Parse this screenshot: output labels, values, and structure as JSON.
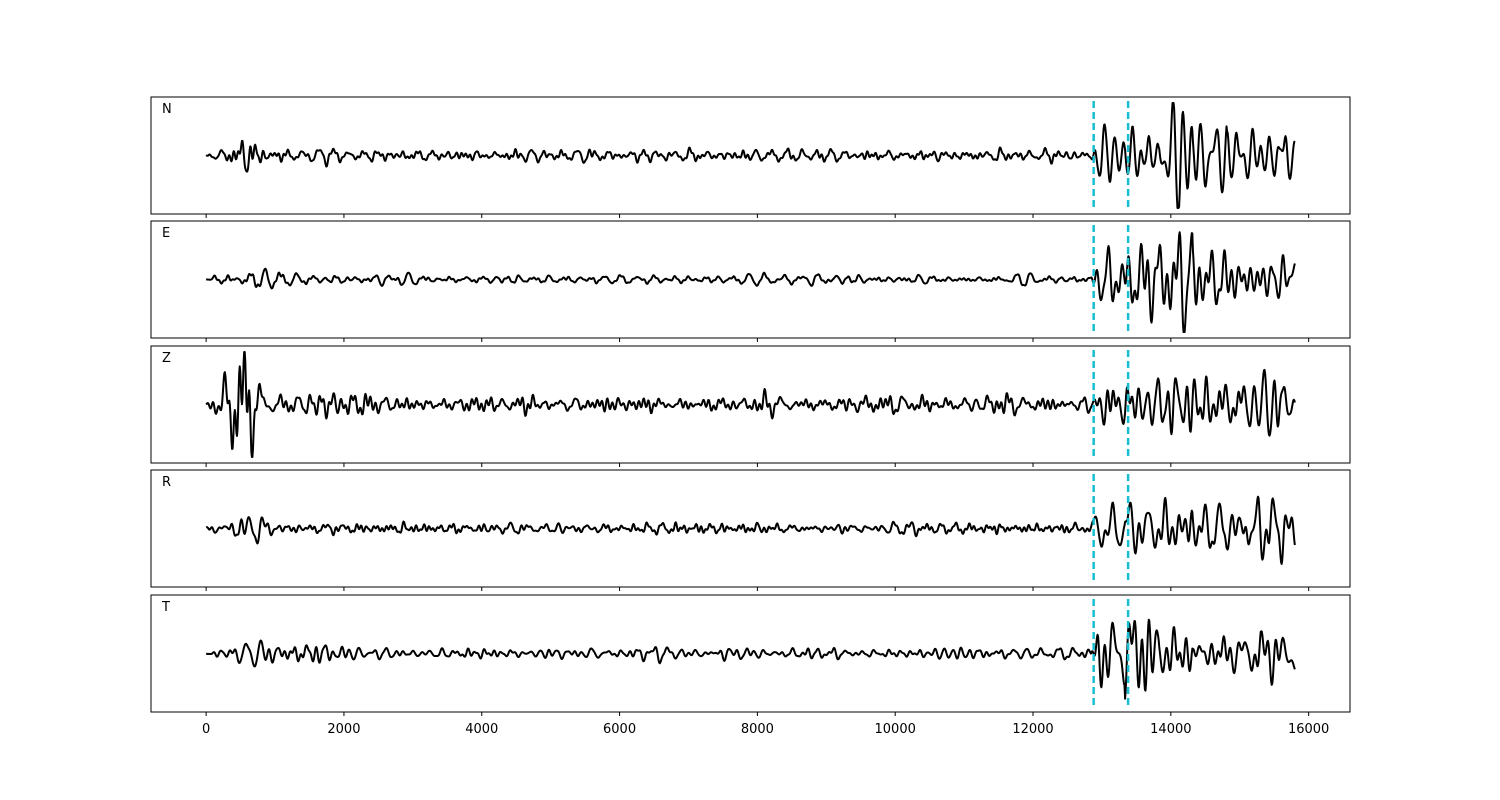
{
  "chart_data": {
    "type": "line",
    "title": "",
    "xlabel": "",
    "ylabel": "",
    "xlim": [
      -800,
      16600
    ],
    "ylim": [
      -1,
      1
    ],
    "xticks": [
      0,
      2000,
      4000,
      6000,
      8000,
      10000,
      12000,
      14000,
      16000
    ],
    "xtick_labels": [
      "0",
      "2000",
      "4000",
      "6000",
      "8000",
      "10000",
      "12000",
      "14000",
      "16000"
    ],
    "x_start": 0,
    "x_end": 15800,
    "grid": false,
    "legend": "none",
    "line_color": "#000000",
    "marker_color": "#17becf",
    "vertical_markers": [
      12880,
      13380
    ],
    "panels": [
      {
        "label": "N",
        "seed": 11,
        "early": [
          {
            "center": 650,
            "width": 250,
            "amp": 0.28
          }
        ],
        "late": [
          0.45,
          0.6,
          0.9,
          0.75,
          0.55,
          0.5
        ],
        "noise": 0.11,
        "end_offset": 0.05
      },
      {
        "label": "E",
        "seed": 23,
        "early": [
          {
            "center": 800,
            "width": 500,
            "amp": 0.12
          }
        ],
        "late": [
          0.55,
          0.75,
          0.8,
          0.6,
          0.5,
          0.45
        ],
        "noise": 0.1,
        "end_offset": 0.22
      },
      {
        "label": "Z",
        "seed": 37,
        "early": [
          {
            "center": 520,
            "width": 260,
            "amp": 0.95
          },
          {
            "center": 1850,
            "width": 250,
            "amp": 0.35
          }
        ],
        "late": [
          0.35,
          0.45,
          0.5,
          0.45,
          0.4,
          0.4
        ],
        "noise": 0.2,
        "end_offset": 0.0
      },
      {
        "label": "R",
        "seed": 49,
        "early": [
          {
            "center": 650,
            "width": 250,
            "amp": 0.25
          }
        ],
        "late": [
          0.5,
          0.8,
          0.8,
          0.6,
          0.55,
          0.6
        ],
        "noise": 0.1,
        "end_offset": -0.12
      },
      {
        "label": "T",
        "seed": 61,
        "early": [
          {
            "center": 1100,
            "width": 800,
            "amp": 0.12
          }
        ],
        "late": [
          0.55,
          0.8,
          0.65,
          0.45,
          0.4,
          0.35
        ],
        "noise": 0.12,
        "end_offset": -0.2
      }
    ]
  }
}
